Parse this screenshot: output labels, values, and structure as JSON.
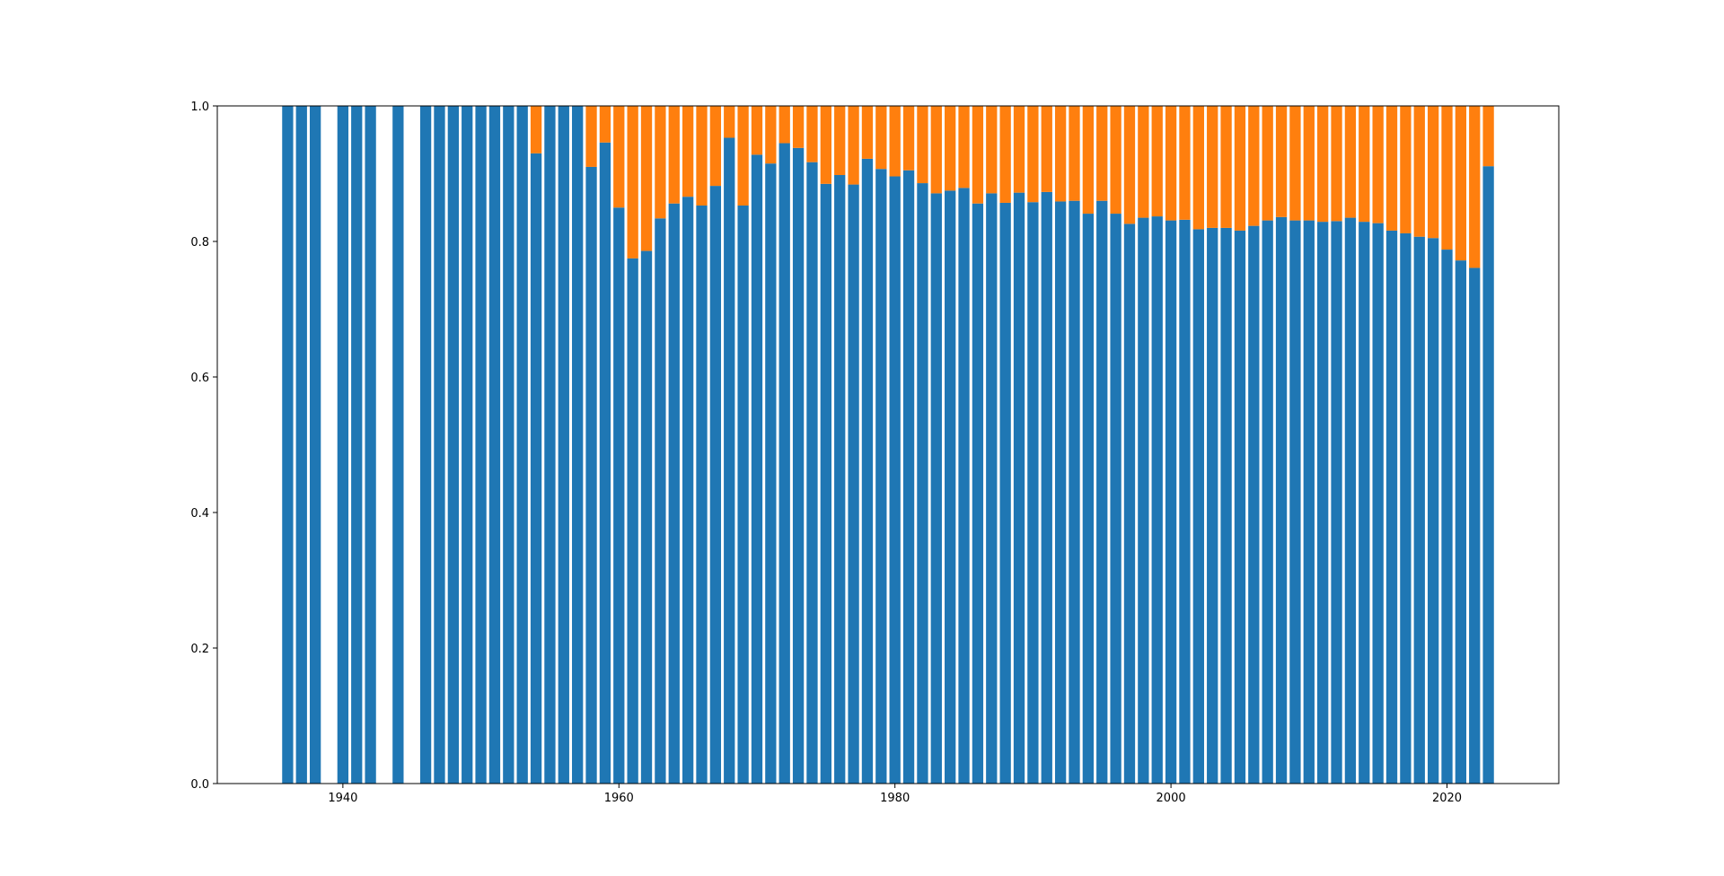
{
  "chart_data": {
    "type": "bar",
    "stacked": true,
    "title": "",
    "xlabel": "",
    "ylabel": "",
    "xlim": [
      1930.9,
      2028.1
    ],
    "ylim": [
      0,
      1
    ],
    "legend": "none",
    "grid": false,
    "x_ticks": [
      1940,
      1960,
      1980,
      2000,
      2020
    ],
    "x_tick_labels": [
      "1940",
      "1960",
      "1980",
      "2000",
      "2020"
    ],
    "y_ticks": [
      0,
      0.2,
      0.4,
      0.6,
      0.8,
      1.0
    ],
    "y_tick_labels": [
      "0.0",
      "0.2",
      "0.4",
      "0.6",
      "0.8",
      "1.0"
    ],
    "x": [
      1936,
      1937,
      1938,
      1940,
      1941,
      1942,
      1944,
      1946,
      1947,
      1948,
      1949,
      1950,
      1951,
      1952,
      1953,
      1954,
      1955,
      1956,
      1957,
      1958,
      1959,
      1960,
      1961,
      1962,
      1963,
      1964,
      1965,
      1966,
      1967,
      1968,
      1969,
      1970,
      1971,
      1972,
      1973,
      1974,
      1975,
      1976,
      1977,
      1978,
      1979,
      1980,
      1981,
      1982,
      1983,
      1984,
      1985,
      1986,
      1987,
      1988,
      1989,
      1990,
      1991,
      1992,
      1993,
      1994,
      1995,
      1996,
      1997,
      1998,
      1999,
      2000,
      2001,
      2002,
      2003,
      2004,
      2005,
      2006,
      2007,
      2008,
      2009,
      2010,
      2011,
      2012,
      2013,
      2014,
      2015,
      2016,
      2017,
      2018,
      2019,
      2020,
      2021,
      2022,
      2023
    ],
    "series": [
      {
        "color": "#1f77b4",
        "values": [
          1,
          1,
          1,
          1,
          1,
          1,
          1,
          1,
          1,
          1,
          1,
          1,
          1,
          1,
          1,
          0.93,
          1,
          1,
          1,
          0.91,
          0.946,
          0.85,
          0.775,
          0.786,
          0.834,
          0.856,
          0.866,
          0.853,
          0.882,
          0.953,
          0.853,
          0.928,
          0.915,
          0.945,
          0.938,
          0.917,
          0.885,
          0.898,
          0.884,
          0.922,
          0.907,
          0.896,
          0.905,
          0.886,
          0.871,
          0.875,
          0.879,
          0.856,
          0.871,
          0.857,
          0.872,
          0.858,
          0.873,
          0.859,
          0.86,
          0.841,
          0.86,
          0.841,
          0.826,
          0.835,
          0.837,
          0.831,
          0.832,
          0.818,
          0.82,
          0.82,
          0.816,
          0.823,
          0.831,
          0.836,
          0.831,
          0.831,
          0.829,
          0.83,
          0.835,
          0.829,
          0.827,
          0.816,
          0.812,
          0.807,
          0.805,
          0.788,
          0.772,
          0.761,
          0.911
        ]
      },
      {
        "color": "#ff7f0e",
        "values": [
          0,
          0,
          0,
          0,
          0,
          0,
          0,
          0,
          0,
          0,
          0,
          0,
          0,
          0,
          0,
          0.07,
          0,
          0,
          0,
          0.09,
          0.054,
          0.15,
          0.225,
          0.214,
          0.166,
          0.144,
          0.134,
          0.147,
          0.118,
          0.047,
          0.147,
          0.072,
          0.085,
          0.055,
          0.062,
          0.083,
          0.115,
          0.102,
          0.116,
          0.078,
          0.093,
          0.104,
          0.095,
          0.114,
          0.129,
          0.125,
          0.121,
          0.144,
          0.129,
          0.143,
          0.128,
          0.142,
          0.127,
          0.141,
          0.14,
          0.159,
          0.14,
          0.159,
          0.174,
          0.165,
          0.163,
          0.169,
          0.168,
          0.182,
          0.18,
          0.18,
          0.184,
          0.177,
          0.169,
          0.164,
          0.169,
          0.169,
          0.171,
          0.17,
          0.165,
          0.171,
          0.173,
          0.184,
          0.188,
          0.193,
          0.195,
          0.212,
          0.228,
          0.239,
          0.089
        ]
      }
    ]
  }
}
